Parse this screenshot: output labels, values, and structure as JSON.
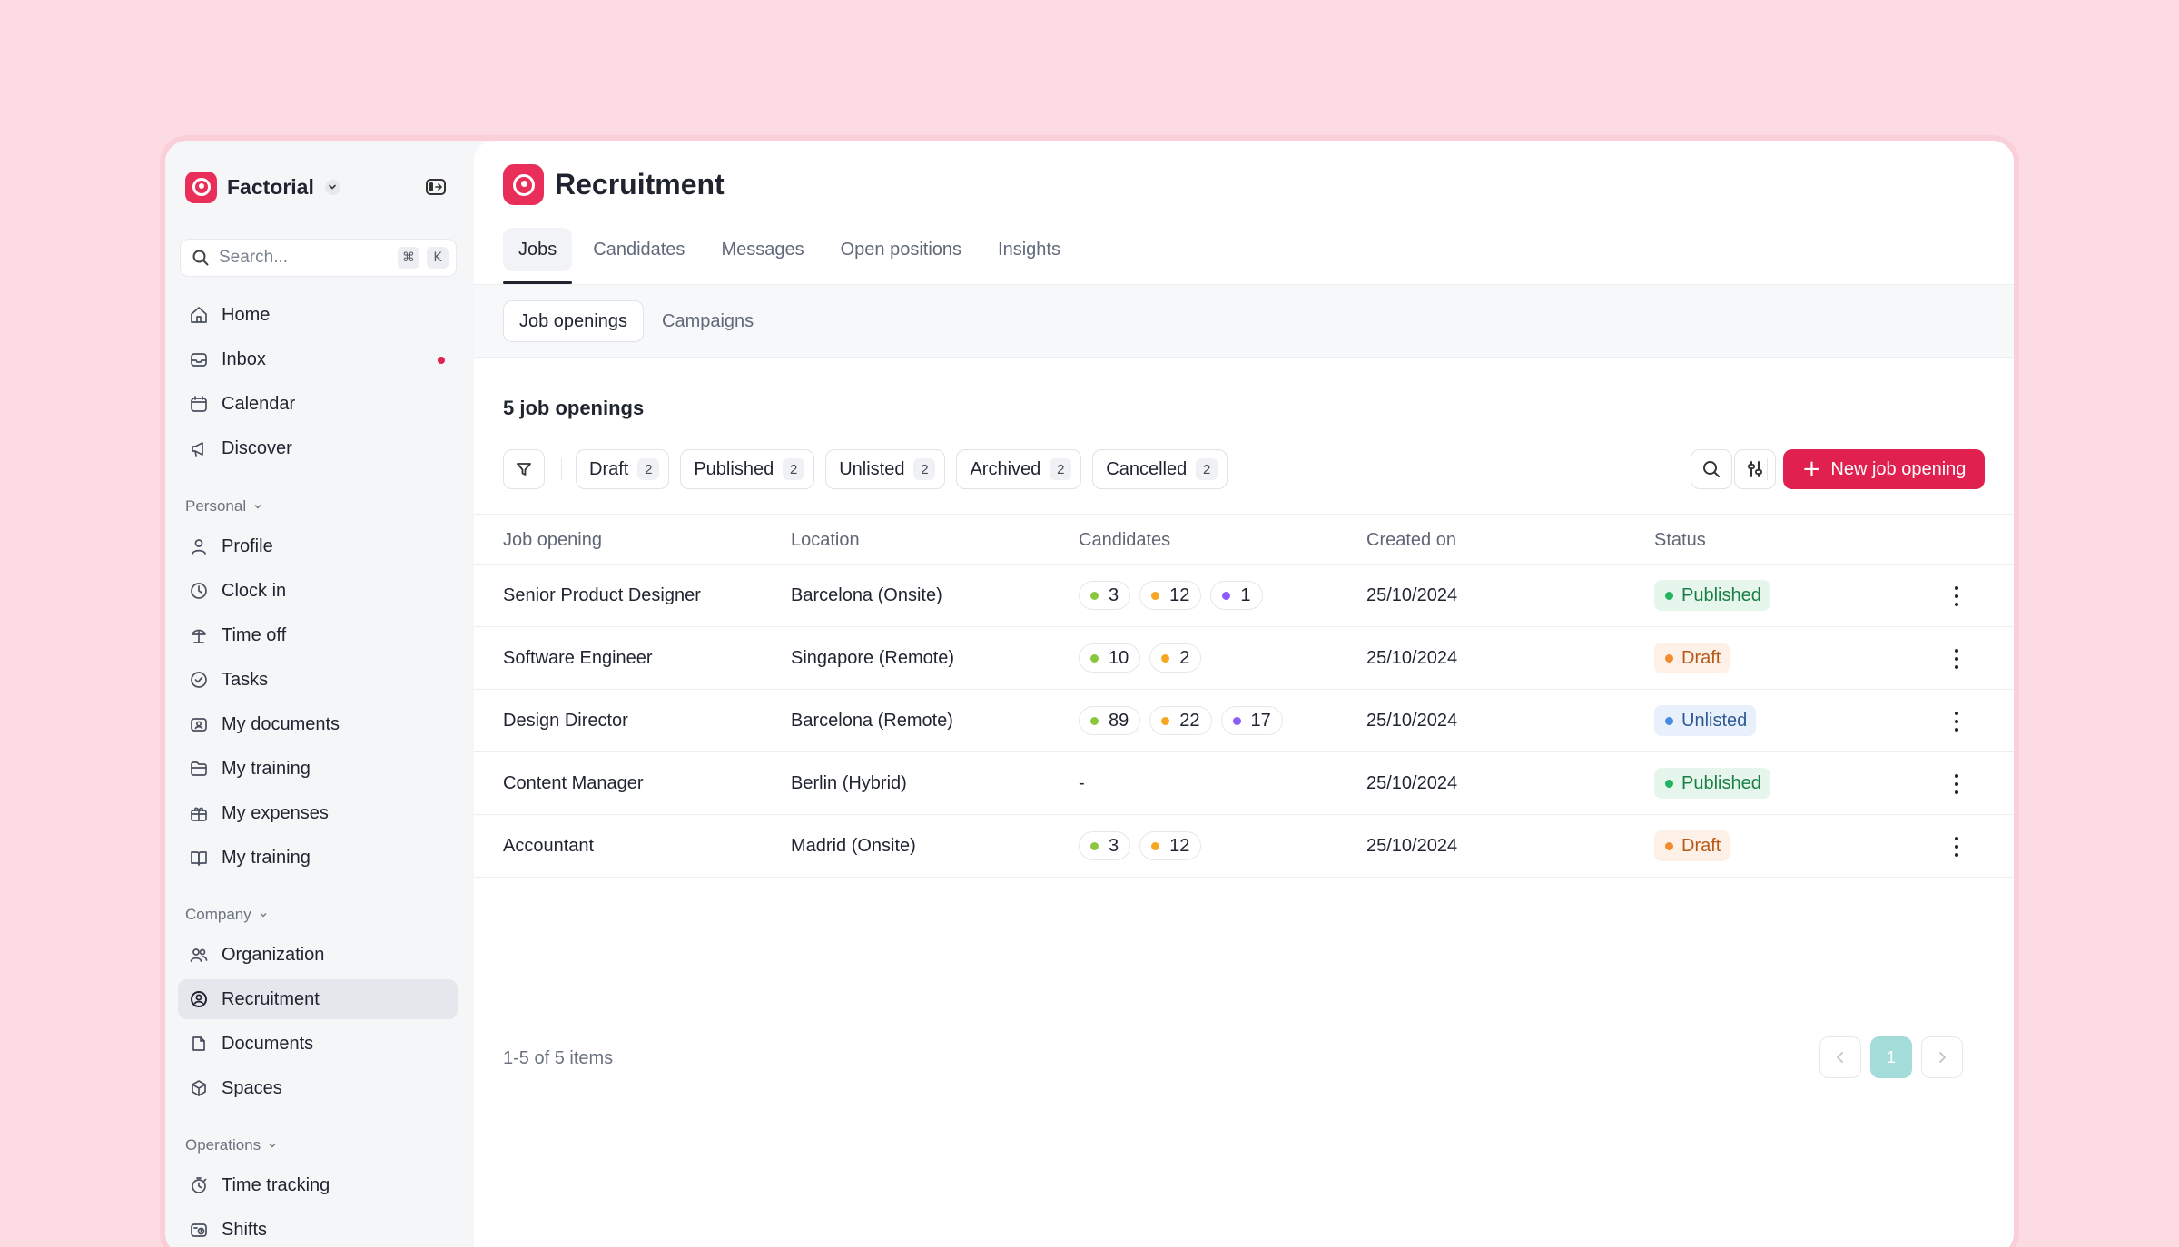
{
  "brand": {
    "name": "Factorial"
  },
  "search": {
    "placeholder": "Search...",
    "kbd1": "⌘",
    "kbd2": "K"
  },
  "nav_main": [
    {
      "label": "Home",
      "icon": "home-icon"
    },
    {
      "label": "Inbox",
      "icon": "inbox-icon",
      "dot": true
    },
    {
      "label": "Calendar",
      "icon": "calendar-icon"
    },
    {
      "label": "Discover",
      "icon": "megaphone-icon"
    }
  ],
  "sections": {
    "personal": "Personal",
    "company": "Company",
    "operations": "Operations"
  },
  "nav_personal": [
    {
      "label": "Profile",
      "icon": "user-icon"
    },
    {
      "label": "Clock in",
      "icon": "clock-icon"
    },
    {
      "label": "Time off",
      "icon": "beach-icon"
    },
    {
      "label": "Tasks",
      "icon": "check-circle-icon"
    },
    {
      "label": "My documents",
      "icon": "id-card-icon"
    },
    {
      "label": "My training",
      "icon": "folder-icon"
    },
    {
      "label": "My expenses",
      "icon": "gift-icon"
    },
    {
      "label": "My training",
      "icon": "book-icon"
    }
  ],
  "nav_company": [
    {
      "label": "Organization",
      "icon": "people-icon"
    },
    {
      "label": "Recruitment",
      "icon": "recruitment-icon",
      "active": true
    },
    {
      "label": "Documents",
      "icon": "documents-icon"
    },
    {
      "label": "Spaces",
      "icon": "cube-icon"
    }
  ],
  "nav_operations": [
    {
      "label": "Time tracking",
      "icon": "stopwatch-icon"
    },
    {
      "label": "Shifts",
      "icon": "shifts-icon"
    }
  ],
  "page": {
    "title": "Recruitment"
  },
  "tabs": [
    "Jobs",
    "Candidates",
    "Messages",
    "Open positions",
    "Insights"
  ],
  "active_tab": "Jobs",
  "subtabs": [
    "Job openings",
    "Campaigns"
  ],
  "active_subtab": "Job openings",
  "count_title": "5 job openings",
  "filters": [
    {
      "label": "Draft",
      "count": "2"
    },
    {
      "label": "Published",
      "count": "2"
    },
    {
      "label": "Unlisted",
      "count": "2"
    },
    {
      "label": "Archived",
      "count": "2"
    },
    {
      "label": "Cancelled",
      "count": "2"
    }
  ],
  "new_button": "New job opening",
  "columns": [
    "Job opening",
    "Location",
    "Candidates",
    "Created on",
    "Status"
  ],
  "rows": [
    {
      "job": "Senior Product Designer",
      "location": "Barcelona (Onsite)",
      "candidates": [
        "3",
        "12",
        "1"
      ],
      "created": "25/10/2024",
      "status": "Published"
    },
    {
      "job": "Software Engineer",
      "location": "Singapore (Remote)",
      "candidates": [
        "10",
        "2"
      ],
      "created": "25/10/2024",
      "status": "Draft"
    },
    {
      "job": "Design Director",
      "location": "Barcelona (Remote)",
      "candidates": [
        "89",
        "22",
        "17"
      ],
      "created": "25/10/2024",
      "status": "Unlisted"
    },
    {
      "job": "Content Manager",
      "location": "Berlin (Hybrid)",
      "candidates_text": "-",
      "created": "25/10/2024",
      "status": "Published"
    },
    {
      "job": "Accountant",
      "location": "Madrid (Onsite)",
      "candidates": [
        "3",
        "12"
      ],
      "created": "25/10/2024",
      "status": "Draft"
    }
  ],
  "candidate_dot_colors": [
    "#8cc63f",
    "#f5a623",
    "#8b5cf6"
  ],
  "status_styles": {
    "Published": {
      "bg": "#e6f6ec",
      "fg": "#1a7f46",
      "dot": "#22b35e"
    },
    "Draft": {
      "bg": "#fdf0e6",
      "fg": "#b75a17",
      "dot": "#f28a2e"
    },
    "Unlisted": {
      "bg": "#e8f0fb",
      "fg": "#2f5a93",
      "dot": "#4a8ae0"
    }
  },
  "pagination": {
    "summary": "1-5 of 5 items",
    "current": "1"
  }
}
